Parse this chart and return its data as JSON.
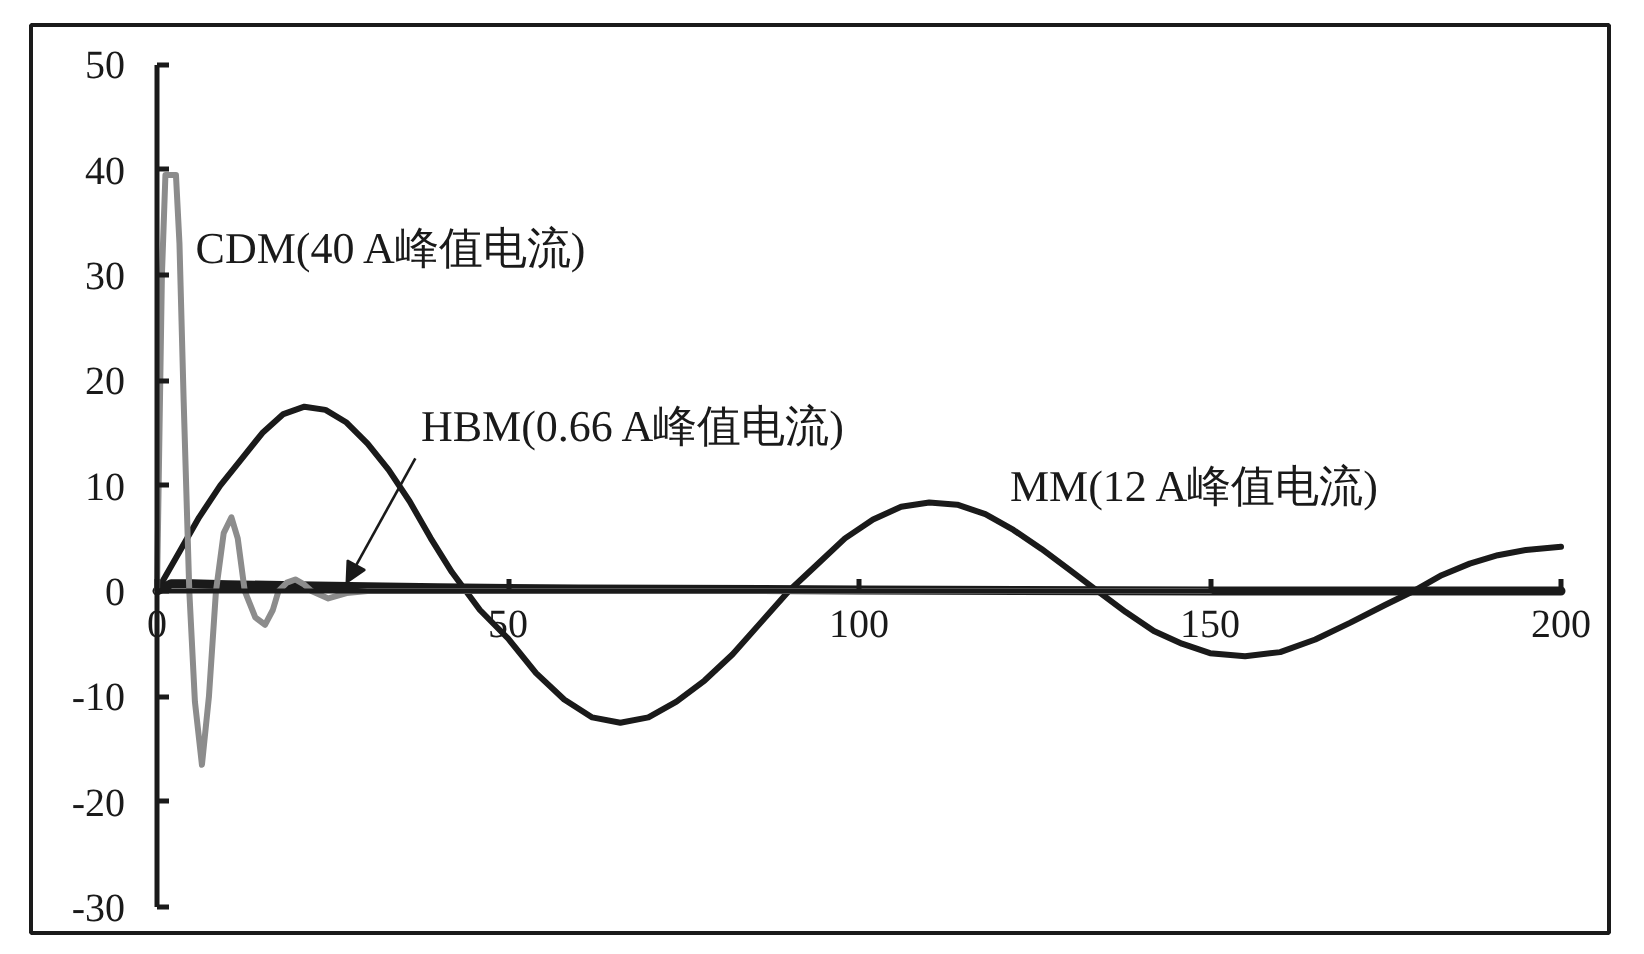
{
  "chart_data": {
    "type": "line",
    "xlim": [
      0,
      200
    ],
    "ylim": [
      -30,
      50
    ],
    "xticks": [
      0,
      50,
      100,
      150,
      200
    ],
    "yticks": [
      -30,
      -20,
      -10,
      0,
      10,
      20,
      30,
      40,
      50
    ],
    "grid": false,
    "series": [
      {
        "name": "MM(12 A峰值电流)",
        "color": "#1a1a1a",
        "x": [
          0,
          3,
          6,
          9,
          12,
          15,
          18,
          21,
          24,
          27,
          30,
          33,
          36,
          39,
          42,
          44,
          46,
          50,
          54,
          58,
          62,
          66,
          70,
          74,
          78,
          82,
          86,
          90,
          94,
          98,
          102,
          106,
          110,
          114,
          118,
          122,
          126,
          130,
          134,
          138,
          142,
          146,
          150,
          155,
          160,
          165,
          170,
          175,
          179,
          183,
          187,
          191,
          195,
          200
        ],
        "values": [
          0,
          3.5,
          7,
          10,
          12.5,
          15,
          16.8,
          17.5,
          17.2,
          16,
          14,
          11.5,
          8.5,
          5,
          1.8,
          0,
          -1.8,
          -4.5,
          -7.8,
          -10.3,
          -12,
          -12.5,
          -12,
          -10.5,
          -8.5,
          -6,
          -3,
          0,
          2.5,
          5,
          6.8,
          8,
          8.4,
          8.2,
          7.3,
          5.8,
          4,
          2,
          0,
          -2,
          -3.8,
          -5,
          -5.9,
          -6.2,
          -5.8,
          -4.6,
          -3,
          -1.3,
          0,
          1.5,
          2.6,
          3.4,
          3.9,
          4.2
        ]
      },
      {
        "name": "CDM(40 A峰值电流)",
        "color": "#8c8c8c",
        "x": [
          0,
          0.7,
          1.2,
          2.7,
          3.2,
          3.8,
          4.6,
          5.4,
          6.4,
          7.4,
          8.4,
          9.5,
          10.6,
          11.5,
          12.5,
          14,
          15.4,
          16.5,
          17.3,
          18.5,
          19.7,
          21,
          22,
          24.4,
          27,
          30,
          50,
          100,
          150
        ],
        "values": [
          0,
          30,
          39.5,
          39.5,
          33,
          18,
          0,
          -10.5,
          -16.5,
          -10,
          0,
          5.5,
          7,
          5,
          0,
          -2.5,
          -3.2,
          -1.8,
          0,
          0.8,
          1.1,
          0.6,
          0,
          -0.7,
          -0.2,
          0,
          0,
          0,
          0
        ]
      },
      {
        "name": "HBM(0.66 A峰值电流)",
        "color": "#1a1a1a",
        "x": [
          0,
          2,
          5,
          10,
          20,
          30,
          40,
          60,
          100,
          150,
          200
        ],
        "values": [
          0,
          0.7,
          0.7,
          0.6,
          0.5,
          0.4,
          0.3,
          0.2,
          0.1,
          0,
          0
        ]
      }
    ]
  }
}
